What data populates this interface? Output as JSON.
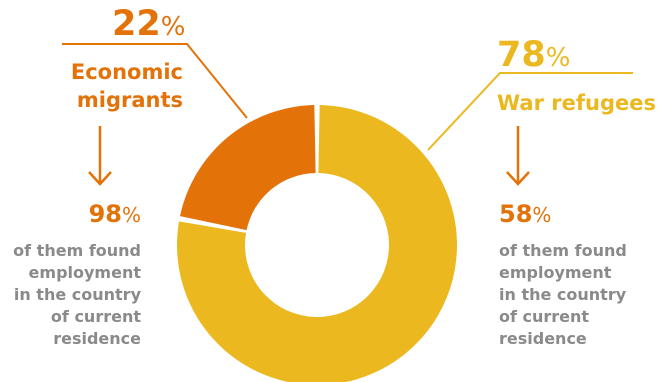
{
  "chart_data": {
    "type": "pie",
    "style": "donut",
    "slices": [
      {
        "label": "Economic migrants",
        "value": 22,
        "value_label": "22",
        "unit": "%",
        "color": "#e37209"
      },
      {
        "label": "War refugees",
        "value": 78,
        "value_label": "78",
        "unit": "%",
        "color": "#ebb820"
      }
    ]
  },
  "left": {
    "share_value": "22",
    "share_unit": "%",
    "label_line1": "Economic",
    "label_line2": "migrants",
    "employment_value": "98",
    "employment_unit": "%",
    "employment_lines": [
      "of them found",
      "employment",
      "in the country",
      "of current",
      "residence"
    ]
  },
  "right": {
    "share_value": "78",
    "share_unit": "%",
    "label": "War refugees",
    "employment_value": "58",
    "employment_unit": "%",
    "employment_lines": [
      "of them found",
      "employment",
      "in the country",
      "of current",
      "residence"
    ]
  },
  "colors": {
    "orange": "#e37209",
    "yellow": "#ebb820",
    "gray_text": "#8a8a8a"
  },
  "icons": {
    "arrow": "arrow-down-icon"
  }
}
